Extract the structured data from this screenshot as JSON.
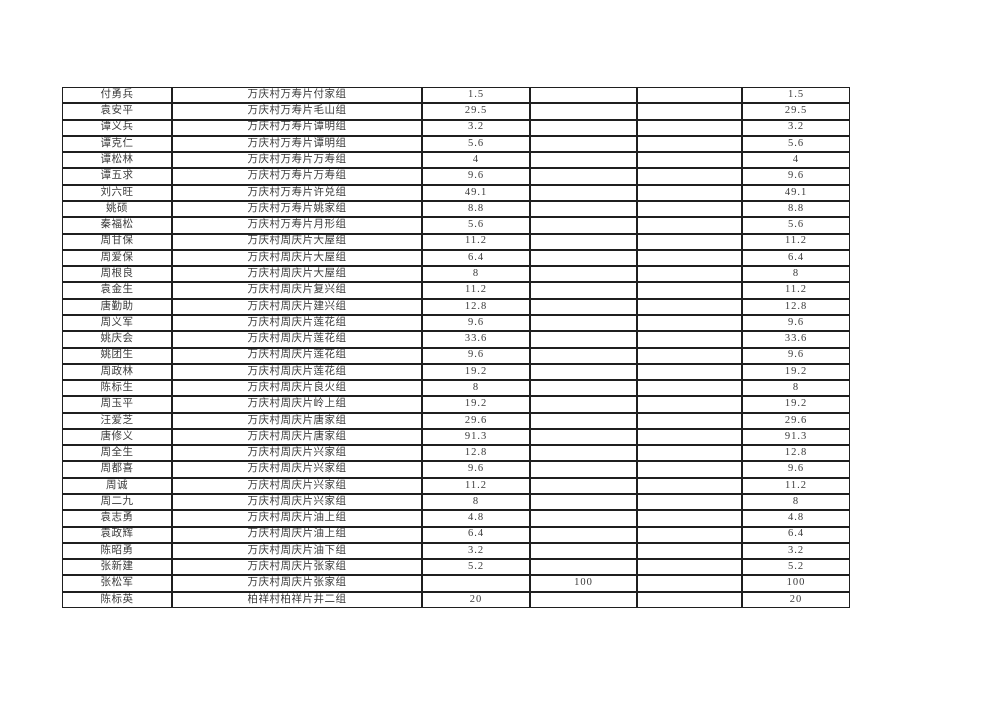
{
  "table": {
    "rows": [
      [
        "付勇兵",
        "万庆村万寿片付家组",
        "1.5",
        "",
        "",
        "1.5"
      ],
      [
        "袁安平",
        "万庆村万寿片毛山组",
        "29.5",
        "",
        "",
        "29.5"
      ],
      [
        "谭义兵",
        "万庆村万寿片谭明组",
        "3.2",
        "",
        "",
        "3.2"
      ],
      [
        "谭克仁",
        "万庆村万寿片谭明组",
        "5.6",
        "",
        "",
        "5.6"
      ],
      [
        "谭松林",
        "万庆村万寿片万寿组",
        "4",
        "",
        "",
        "4"
      ],
      [
        "谭五求",
        "万庆村万寿片万寿组",
        "9.6",
        "",
        "",
        "9.6"
      ],
      [
        "刘六旺",
        "万庆村万寿片许兑组",
        "49.1",
        "",
        "",
        "49.1"
      ],
      [
        "姚硕",
        "万庆村万寿片姚家组",
        "8.8",
        "",
        "",
        "8.8"
      ],
      [
        "秦福松",
        "万庆村万寿片月形组",
        "5.6",
        "",
        "",
        "5.6"
      ],
      [
        "周甘保",
        "万庆村周庆片大屋组",
        "11.2",
        "",
        "",
        "11.2"
      ],
      [
        "周爱保",
        "万庆村周庆片大屋组",
        "6.4",
        "",
        "",
        "6.4"
      ],
      [
        "周根良",
        "万庆村周庆片大屋组",
        "8",
        "",
        "",
        "8"
      ],
      [
        "袁金生",
        "万庆村周庆片复兴组",
        "11.2",
        "",
        "",
        "11.2"
      ],
      [
        "唐勤助",
        "万庆村周庆片建兴组",
        "12.8",
        "",
        "",
        "12.8"
      ],
      [
        "周义军",
        "万庆村周庆片莲花组",
        "9.6",
        "",
        "",
        "9.6"
      ],
      [
        "姚庆会",
        "万庆村周庆片莲花组",
        "33.6",
        "",
        "",
        "33.6"
      ],
      [
        "姚团生",
        "万庆村周庆片莲花组",
        "9.6",
        "",
        "",
        "9.6"
      ],
      [
        "周政林",
        "万庆村周庆片莲花组",
        "19.2",
        "",
        "",
        "19.2"
      ],
      [
        "陈标生",
        "万庆村周庆片良火组",
        "8",
        "",
        "",
        "8"
      ],
      [
        "周玉平",
        "万庆村周庆片岭上组",
        "19.2",
        "",
        "",
        "19.2"
      ],
      [
        "汪爱芝",
        "万庆村周庆片唐家组",
        "29.6",
        "",
        "",
        "29.6"
      ],
      [
        "唐修义",
        "万庆村周庆片唐家组",
        "91.3",
        "",
        "",
        "91.3"
      ],
      [
        "周全生",
        "万庆村周庆片兴家组",
        "12.8",
        "",
        "",
        "12.8"
      ],
      [
        "周都喜",
        "万庆村周庆片兴家组",
        "9.6",
        "",
        "",
        "9.6"
      ],
      [
        "周诚",
        "万庆村周庆片兴家组",
        "11.2",
        "",
        "",
        "11.2"
      ],
      [
        "周二九",
        "万庆村周庆片兴家组",
        "8",
        "",
        "",
        "8"
      ],
      [
        "袁志勇",
        "万庆村周庆片油上组",
        "4.8",
        "",
        "",
        "4.8"
      ],
      [
        "袁政辉",
        "万庆村周庆片油上组",
        "6.4",
        "",
        "",
        "6.4"
      ],
      [
        "陈昭勇",
        "万庆村周庆片油下组",
        "3.2",
        "",
        "",
        "3.2"
      ],
      [
        "张新建",
        "万庆村周庆片张家组",
        "5.2",
        "",
        "",
        "5.2"
      ],
      [
        "张松军",
        "万庆村周庆片张家组",
        "",
        "100",
        "",
        "100"
      ],
      [
        "陈标英",
        "柏祥村柏祥片井二组",
        "20",
        "",
        "",
        "20"
      ]
    ]
  }
}
